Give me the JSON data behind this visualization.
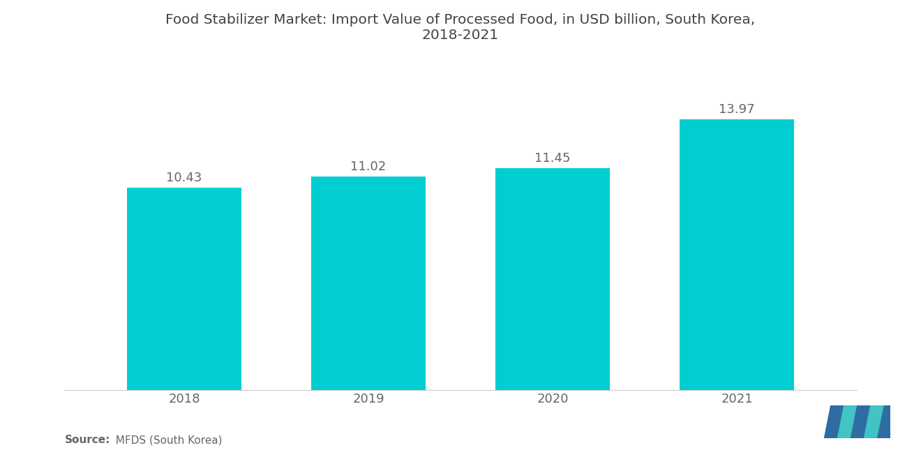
{
  "title": "Food Stabilizer Market: Import Value of Processed Food, in USD billion, South Korea,\n2018-2021",
  "categories": [
    "2018",
    "2019",
    "2020",
    "2021"
  ],
  "values": [
    10.43,
    11.02,
    11.45,
    13.97
  ],
  "bar_color": "#00CED1",
  "label_color": "#666666",
  "title_color": "#444444",
  "background_color": "#ffffff",
  "source_bold": "Source:",
  "source_rest": "  MFDS (South Korea)",
  "ylim": [
    0,
    17
  ],
  "bar_width": 0.62,
  "title_fontsize": 14.5,
  "label_fontsize": 13,
  "tick_fontsize": 13,
  "source_fontsize": 11,
  "logo_dark": "#2E6DA4",
  "logo_teal": "#40C4C4"
}
